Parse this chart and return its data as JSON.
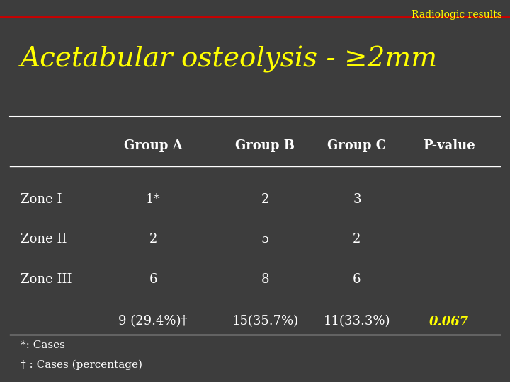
{
  "title": "Acetabular osteolysis - ≥2mm",
  "header_label": "Radiologic results",
  "bg_color": "#3d3d3d",
  "header_line_color": "#cc0000",
  "title_color": "#ffff00",
  "header_text_color": "#ffff00",
  "table_header_color": "#ffffff",
  "table_text_color": "#ffffff",
  "pvalue_color": "#ffff00",
  "line_color": "#ffffff",
  "footnote_color": "#ffffff",
  "columns": [
    "",
    "Group A",
    "Group B",
    "Group C",
    "P-value"
  ],
  "rows": [
    [
      "Zone I",
      "1*",
      "2",
      "3",
      ""
    ],
    [
      "Zone II",
      "2",
      "5",
      "2",
      ""
    ],
    [
      "Zone III",
      "6",
      "8",
      "6",
      ""
    ],
    [
      "",
      "9 (29.4%)†",
      "15(35.7%)",
      "11(33.3%)",
      "0.067"
    ]
  ],
  "footnote_line1": "*: Cases",
  "footnote_line2": "† : Cases (percentage)"
}
